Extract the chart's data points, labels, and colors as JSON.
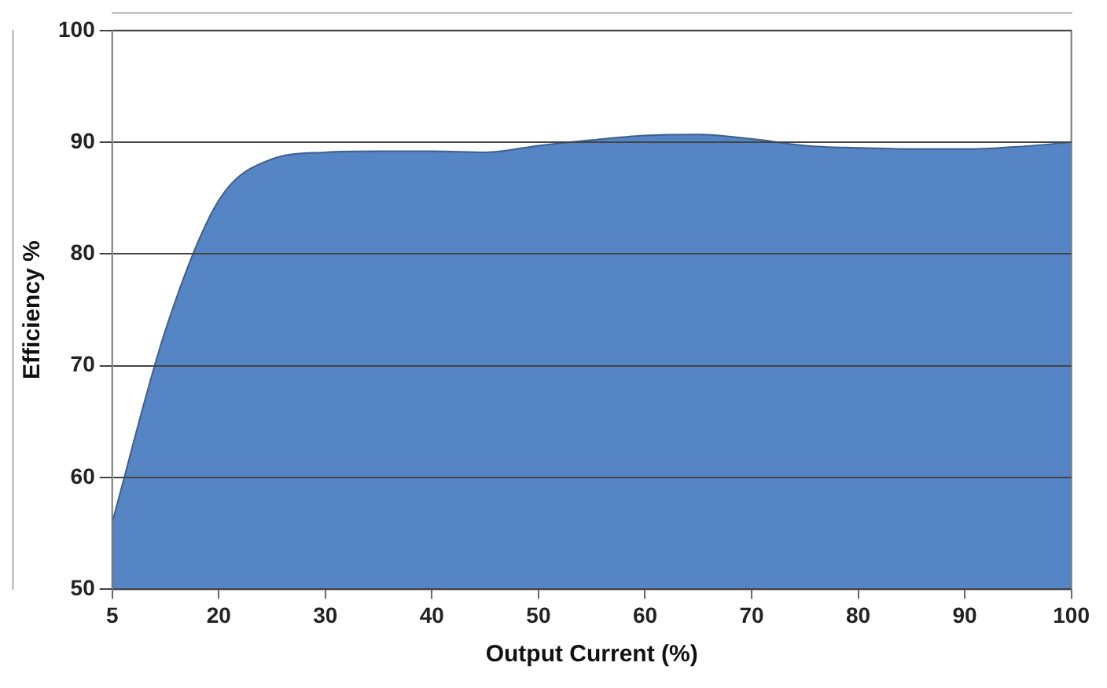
{
  "chart_data": {
    "type": "area",
    "xlabel": "Output Current (%)",
    "ylabel": "Efficiency %",
    "categories": [
      "5",
      null,
      "20",
      null,
      "30",
      null,
      "40",
      null,
      "50",
      null,
      "60",
      null,
      "70",
      null,
      "80",
      null,
      "90",
      null,
      "100"
    ],
    "series": [
      {
        "color": "#5585c5",
        "values": [
          56,
          73.2,
          84.8,
          88.5,
          89.1,
          89.2,
          89.2,
          89.1,
          89.7,
          90.2,
          90.6,
          90.7,
          90.3,
          89.7,
          89.5,
          89.4,
          89.4,
          89.6,
          90.0
        ]
      }
    ],
    "ylim": [
      50,
      100
    ],
    "yticks": [
      50,
      60,
      70,
      80,
      90,
      100
    ],
    "grid": "y",
    "legend": false
  }
}
